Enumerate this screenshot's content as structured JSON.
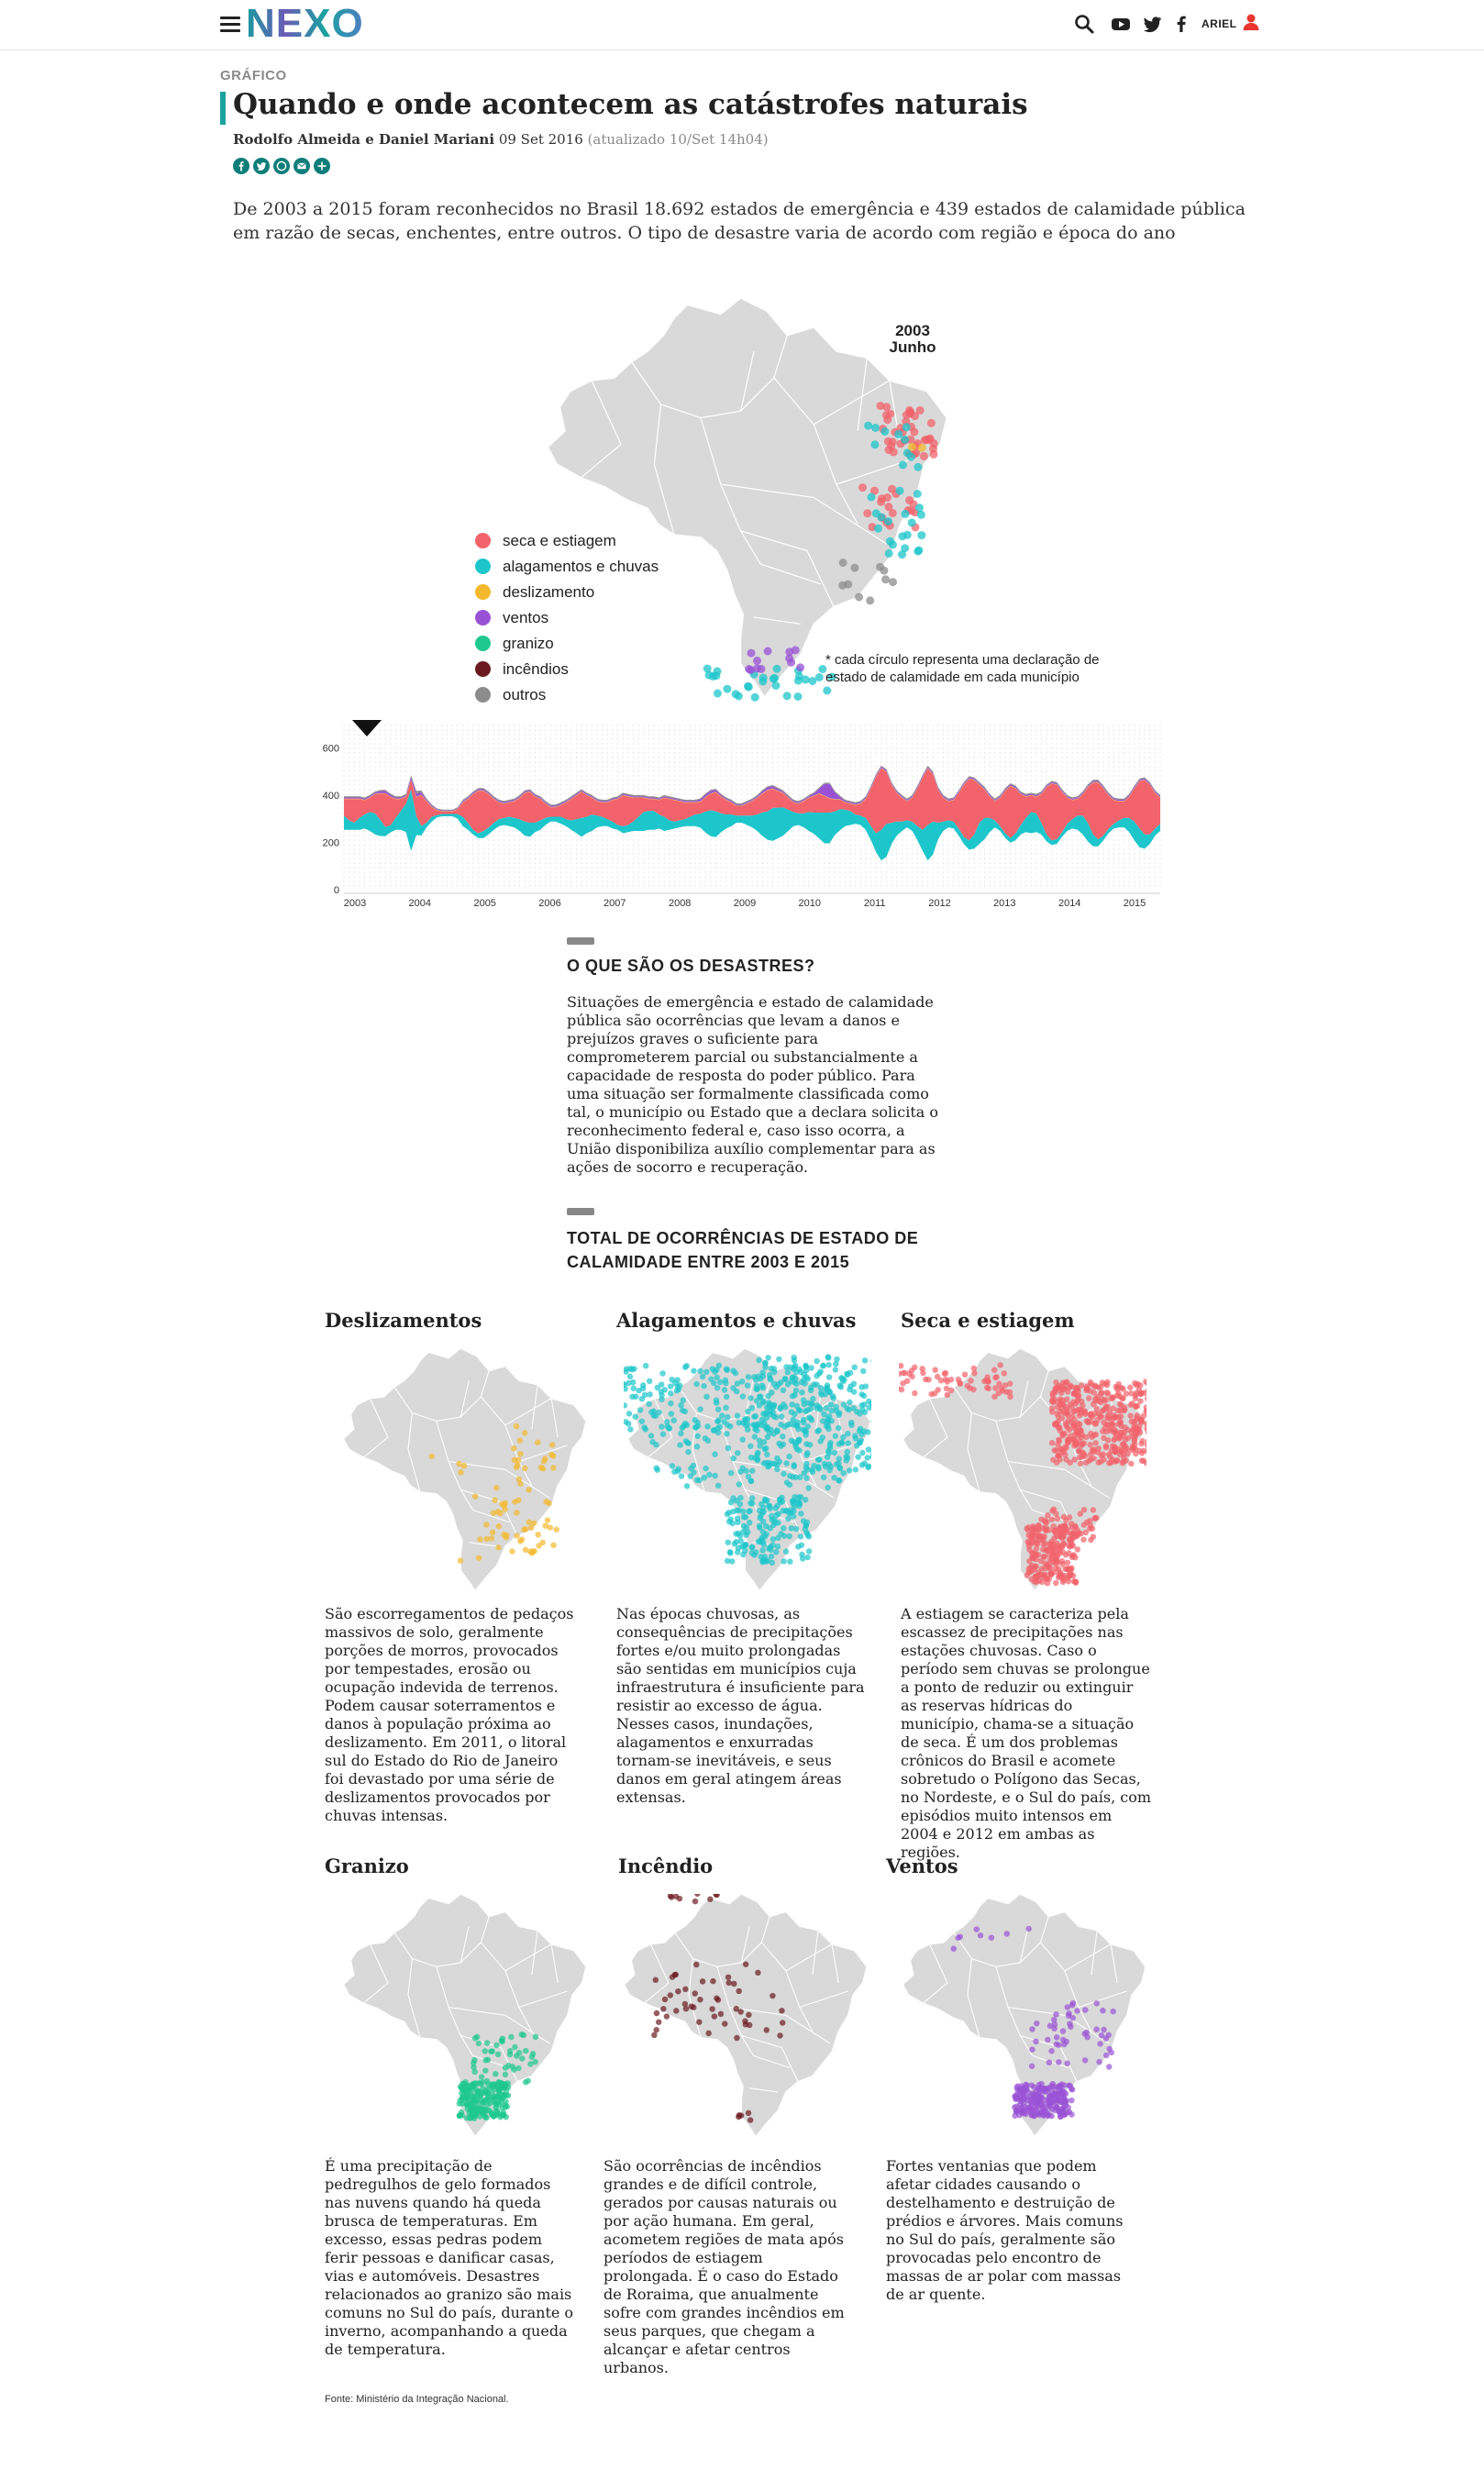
{
  "header": {
    "logo": "NEXO",
    "user": "ARIEL",
    "icons": [
      "menu-icon",
      "search-icon",
      "youtube-icon",
      "twitter-icon",
      "facebook-icon",
      "user-icon"
    ]
  },
  "article": {
    "kicker": "GRÁFICO",
    "title": "Quando e onde acontecem as catástrofes naturais",
    "authors": "Rodolfo Almeida e Daniel Mariani",
    "date": "09 Set 2016",
    "updated": "(atualizado 10/Set 14h04)",
    "share_icons": [
      "facebook-share-icon",
      "twitter-share-icon",
      "whatsapp-share-icon",
      "email-share-icon",
      "more-share-icon"
    ],
    "intro": "De 2003 a 2015 foram reconhecidos no Brasil 18.692 estados de emergência e 439 estados de calamidade pública em razão de secas, enchentes, entre outros. O tipo de desastre varia de acordo com região e época do ano"
  },
  "main_map": {
    "year": "2003",
    "month": "Junho",
    "legend": [
      {
        "label": "seca e estiagem",
        "color": "#f2636b"
      },
      {
        "label": "alagamentos e chuvas",
        "color": "#1cc6cb"
      },
      {
        "label": "deslizamento",
        "color": "#f3b92d"
      },
      {
        "label": "ventos",
        "color": "#9a52d5"
      },
      {
        "label": "granizo",
        "color": "#1ec88f"
      },
      {
        "label": "incêndios",
        "color": "#6a1a1f"
      },
      {
        "label": "outros",
        "color": "#8c8c8c"
      }
    ],
    "note": "* cada círculo representa uma declaração de estado de calamidade em cada município",
    "land_color": "#d9d9d9"
  },
  "chart_data": {
    "type": "area",
    "subtype": "streamgraph",
    "y_ticks": [
      "600",
      "400",
      "200",
      "0"
    ],
    "ylim": [
      0,
      700
    ],
    "x_tick_labels": [
      "2003",
      "2004",
      "2005",
      "2006",
      "2007",
      "2008",
      "2009",
      "2010",
      "2011",
      "2012",
      "2013",
      "2014",
      "2015"
    ],
    "grid": "vertical monthly",
    "current_marker": "2003 Junho",
    "series": [
      {
        "name": "alagamentos e chuvas",
        "color": "#1cc6cb",
        "values": [
          60,
          40,
          30,
          50,
          60,
          80,
          90,
          70,
          40,
          30,
          50,
          80,
          120,
          260,
          80,
          40,
          20,
          20,
          10,
          10,
          10,
          10,
          20,
          40,
          30,
          20,
          20,
          30,
          30,
          30,
          30,
          30,
          40,
          40,
          50,
          60,
          60,
          40,
          40,
          30,
          20,
          20,
          30,
          30,
          40,
          60,
          80,
          70,
          70,
          50,
          40,
          30,
          30,
          20,
          30,
          30,
          40,
          60,
          80,
          80,
          80,
          60,
          60,
          40,
          30,
          30,
          30,
          40,
          50,
          60,
          90,
          110,
          110,
          80,
          60,
          50,
          30,
          30,
          40,
          50,
          70,
          100,
          120,
          140,
          130,
          120,
          90,
          60,
          50,
          60,
          80,
          90,
          110,
          130,
          130,
          100,
          90,
          70,
          60,
          40,
          40,
          50,
          60,
          80,
          130,
          140,
          90,
          60,
          40,
          30,
          40,
          60,
          90,
          150,
          140,
          70,
          40,
          30,
          30,
          30,
          30,
          40,
          60,
          90,
          90,
          60,
          30,
          20,
          20,
          20,
          30,
          40,
          60,
          90,
          80,
          50,
          30,
          20,
          20,
          20,
          30,
          40,
          60,
          80,
          80,
          50,
          30,
          20,
          20,
          20,
          30,
          40,
          60,
          80,
          80,
          60,
          40,
          30,
          30
        ]
      },
      {
        "name": "seca e estiagem",
        "color": "#f2636b",
        "values": [
          70,
          90,
          100,
          80,
          60,
          60,
          80,
          110,
          140,
          120,
          80,
          50,
          30,
          40,
          80,
          130,
          90,
          40,
          20,
          10,
          10,
          10,
          20,
          60,
          100,
          150,
          180,
          170,
          140,
          100,
          70,
          60,
          60,
          70,
          90,
          120,
          130,
          110,
          90,
          60,
          40,
          40,
          50,
          70,
          90,
          100,
          110,
          90,
          70,
          60,
          60,
          70,
          90,
          110,
          130,
          120,
          100,
          80,
          60,
          50,
          50,
          60,
          80,
          90,
          90,
          80,
          70,
          60,
          50,
          50,
          60,
          70,
          80,
          70,
          60,
          50,
          40,
          40,
          50,
          60,
          70,
          80,
          90,
          80,
          70,
          60,
          50,
          40,
          40,
          50,
          60,
          70,
          80,
          70,
          60,
          50,
          40,
          30,
          30,
          40,
          50,
          80,
          160,
          240,
          260,
          220,
          160,
          120,
          100,
          80,
          100,
          160,
          220,
          240,
          200,
          140,
          100,
          80,
          90,
          150,
          220,
          260,
          230,
          160,
          120,
          90,
          80,
          120,
          180,
          220,
          190,
          130,
          90,
          70,
          70,
          120,
          200,
          240,
          230,
          170,
          110,
          80,
          70,
          90,
          150,
          220,
          240,
          200,
          140,
          100,
          80,
          70,
          90,
          140,
          200,
          230,
          210,
          150,
          110,
          80,
          70
        ]
      },
      {
        "name": "deslizamento",
        "color": "#f3b92d",
        "values": [
          2,
          2,
          2,
          2,
          2,
          2,
          2,
          2,
          2,
          2,
          2,
          2,
          2,
          2,
          2,
          2,
          2,
          2,
          2,
          2,
          2,
          2,
          2,
          2,
          2,
          2,
          2,
          2,
          2,
          2,
          2,
          2,
          2,
          2,
          2,
          2,
          2,
          2,
          2,
          2,
          2,
          2,
          2,
          2,
          2,
          2,
          2,
          2,
          2,
          2,
          2,
          2,
          2,
          2,
          2,
          2,
          2,
          2,
          2,
          2,
          2,
          2,
          2,
          2,
          2,
          2,
          2,
          2,
          2,
          2,
          2,
          2,
          2,
          2,
          2,
          2,
          2,
          2,
          2,
          2,
          2,
          2,
          2,
          2,
          2,
          2,
          2,
          2,
          2,
          2,
          2,
          2,
          2,
          2,
          2,
          2,
          2,
          2,
          2,
          2,
          2,
          2,
          2,
          2,
          2,
          2,
          2,
          2,
          2,
          2,
          2,
          2,
          2,
          2,
          2,
          2,
          2,
          2,
          2,
          2,
          2,
          2,
          2,
          2,
          2,
          2,
          2,
          2,
          2,
          2,
          2,
          2,
          2,
          2,
          2,
          2,
          2,
          2,
          2,
          2,
          2,
          2,
          2,
          2,
          2,
          2,
          2,
          2,
          2,
          2,
          2,
          2,
          2,
          2,
          2,
          2,
          2,
          2,
          2,
          2,
          2
        ]
      },
      {
        "name": "ventos",
        "color": "#9a52d5",
        "values": [
          5,
          5,
          5,
          5,
          5,
          5,
          5,
          8,
          10,
          8,
          5,
          5,
          5,
          10,
          15,
          10,
          5,
          5,
          3,
          3,
          3,
          3,
          3,
          5,
          5,
          5,
          5,
          5,
          5,
          5,
          5,
          5,
          5,
          5,
          5,
          5,
          5,
          5,
          5,
          5,
          5,
          5,
          5,
          5,
          5,
          5,
          5,
          5,
          5,
          5,
          5,
          5,
          5,
          5,
          5,
          5,
          5,
          5,
          5,
          5,
          5,
          5,
          5,
          5,
          5,
          5,
          5,
          5,
          5,
          8,
          10,
          10,
          8,
          5,
          5,
          5,
          5,
          5,
          5,
          5,
          5,
          8,
          10,
          10,
          8,
          5,
          5,
          5,
          5,
          5,
          5,
          10,
          20,
          50,
          60,
          30,
          10,
          5,
          5,
          5,
          5,
          5,
          5,
          5,
          5,
          5,
          5,
          5,
          5,
          5,
          5,
          5,
          5,
          5,
          5,
          5,
          5,
          5,
          5,
          5,
          5,
          5,
          5,
          5,
          5,
          5,
          5,
          5,
          5,
          5,
          5,
          5,
          5,
          5,
          5,
          5,
          5,
          5,
          5,
          5,
          5,
          5,
          5,
          5,
          5,
          5,
          5,
          5,
          5,
          5,
          5,
          5,
          5,
          5,
          5,
          5,
          5,
          5,
          5,
          5
        ]
      },
      {
        "name": "outros",
        "color": "#8c8c8c",
        "values": [
          5,
          5,
          5,
          5,
          5,
          5,
          5,
          5,
          5,
          5,
          5,
          5,
          5,
          8,
          10,
          8,
          5,
          5,
          3,
          3,
          3,
          3,
          3,
          5,
          5,
          5,
          5,
          5,
          5,
          5,
          5,
          5,
          5,
          5,
          5,
          5,
          5,
          5,
          5,
          5,
          5,
          5,
          5,
          5,
          5,
          5,
          5,
          5,
          5,
          5,
          5,
          5,
          5,
          5,
          5,
          5,
          5,
          5,
          5,
          5,
          5,
          5,
          5,
          5,
          5,
          5,
          5,
          5,
          5,
          5,
          5,
          5,
          5,
          5,
          5,
          5,
          5,
          5,
          5,
          5,
          5,
          5,
          5,
          5,
          5,
          5,
          5,
          5,
          5,
          5,
          5,
          5,
          5,
          5,
          5,
          5,
          5,
          5,
          5,
          5,
          5,
          5,
          5,
          5,
          5,
          5,
          5,
          5,
          5,
          5,
          5,
          5,
          5,
          5,
          5,
          5,
          5,
          5,
          5,
          5,
          5,
          5,
          5,
          5,
          5,
          5,
          5,
          5,
          5,
          5,
          5,
          5,
          5,
          5,
          5,
          5,
          5,
          5,
          5,
          5,
          5,
          5,
          5,
          5,
          5,
          5,
          5,
          5,
          5,
          5,
          5,
          5,
          5,
          5,
          5,
          5,
          5,
          5,
          5,
          5,
          5
        ]
      }
    ]
  },
  "sections": [
    {
      "heading": "O QUE SÃO OS DESASTRES?",
      "text": "Situações de emergência e estado de calamidade pública são ocorrências que levam a danos e prejuízos graves o suficiente para comprometerem parcial ou substancialmente a capacidade de resposta do poder público. Para uma situação ser formalmente classificada como tal, o município ou Estado que a declara solicita o reconhecimento federal e, caso isso ocorra, a União disponibiliza auxílio complementar para as ações de socorro e recuperação."
    },
    {
      "heading": "TOTAL DE OCORRÊNCIAS DE ESTADO DE CALAMIDADE ENTRE 2003 E 2015"
    }
  ],
  "small_maps": [
    {
      "title": "Deslizamentos",
      "color": "#f3b92d",
      "text": "São escorregamentos de pedaços massivos de solo, geralmente porções de morros, provocados por tempestades, erosão ou ocupação indevida de terrenos. Podem causar soterramentos e danos à população próxima ao deslizamento. Em 2011, o litoral sul do Estado do Rio de Janeiro foi devastado por uma série de deslizamentos provocados por chuvas intensas."
    },
    {
      "title": "Alagamentos e chuvas",
      "color": "#1cc6cb",
      "text": "Nas épocas chuvosas, as consequências de precipitações fortes e/ou muito prolongadas são sentidas em municípios cuja infraestrutura é insuficiente para resistir ao excesso de água. Nesses casos, inundações, alagamentos e enxurradas tornam-se inevitáveis, e seus danos em geral atingem áreas extensas."
    },
    {
      "title": "Seca e estiagem",
      "color": "#f2636b",
      "text": "A estiagem se caracteriza pela escassez de precipitações nas estações chuvosas. Caso o período sem chuvas se prolongue a ponto de reduzir ou extinguir as reservas hídricas do município, chama-se a situação de seca. É um dos problemas crônicos do Brasil e acomete sobretudo o Polígono das Secas, no Nordeste, e o Sul do país, com episódios muito intensos em 2004 e 2012 em ambas as regiões."
    },
    {
      "title": "Granizo",
      "color": "#1ec88f",
      "text": "É uma precipitação de pedregulhos de gelo formados nas nuvens quando há queda brusca de temperaturas. Em excesso, essas pedras podem ferir pessoas e danificar casas, vias e automóveis. Desastres relacionados ao granizo são mais comuns no Sul do país, durante o inverno, acompanhando a queda de temperatura."
    },
    {
      "title": "Incêndio",
      "color": "#6a1a1f",
      "text": "São ocorrências de incêndios grandes e de difícil controle, gerados por causas naturais ou por ação humana. Em geral, acometem regiões de mata após períodos de estiagem prolongada. É o caso do Estado de Roraima, que anualmente sofre com grandes incêndios em seus parques, que chegam a alcançar e afetar centros urbanos."
    },
    {
      "title": "Ventos",
      "color": "#9a52d5",
      "text": "Fortes ventanias que podem afetar cidades causando o destelhamento e destruição de prédios e árvores. Mais comuns no Sul do país, geralmente são provocadas pelo encontro de massas de ar polar com massas de ar quente."
    }
  ],
  "source": "Fonte: Ministério da Integração Nacional."
}
